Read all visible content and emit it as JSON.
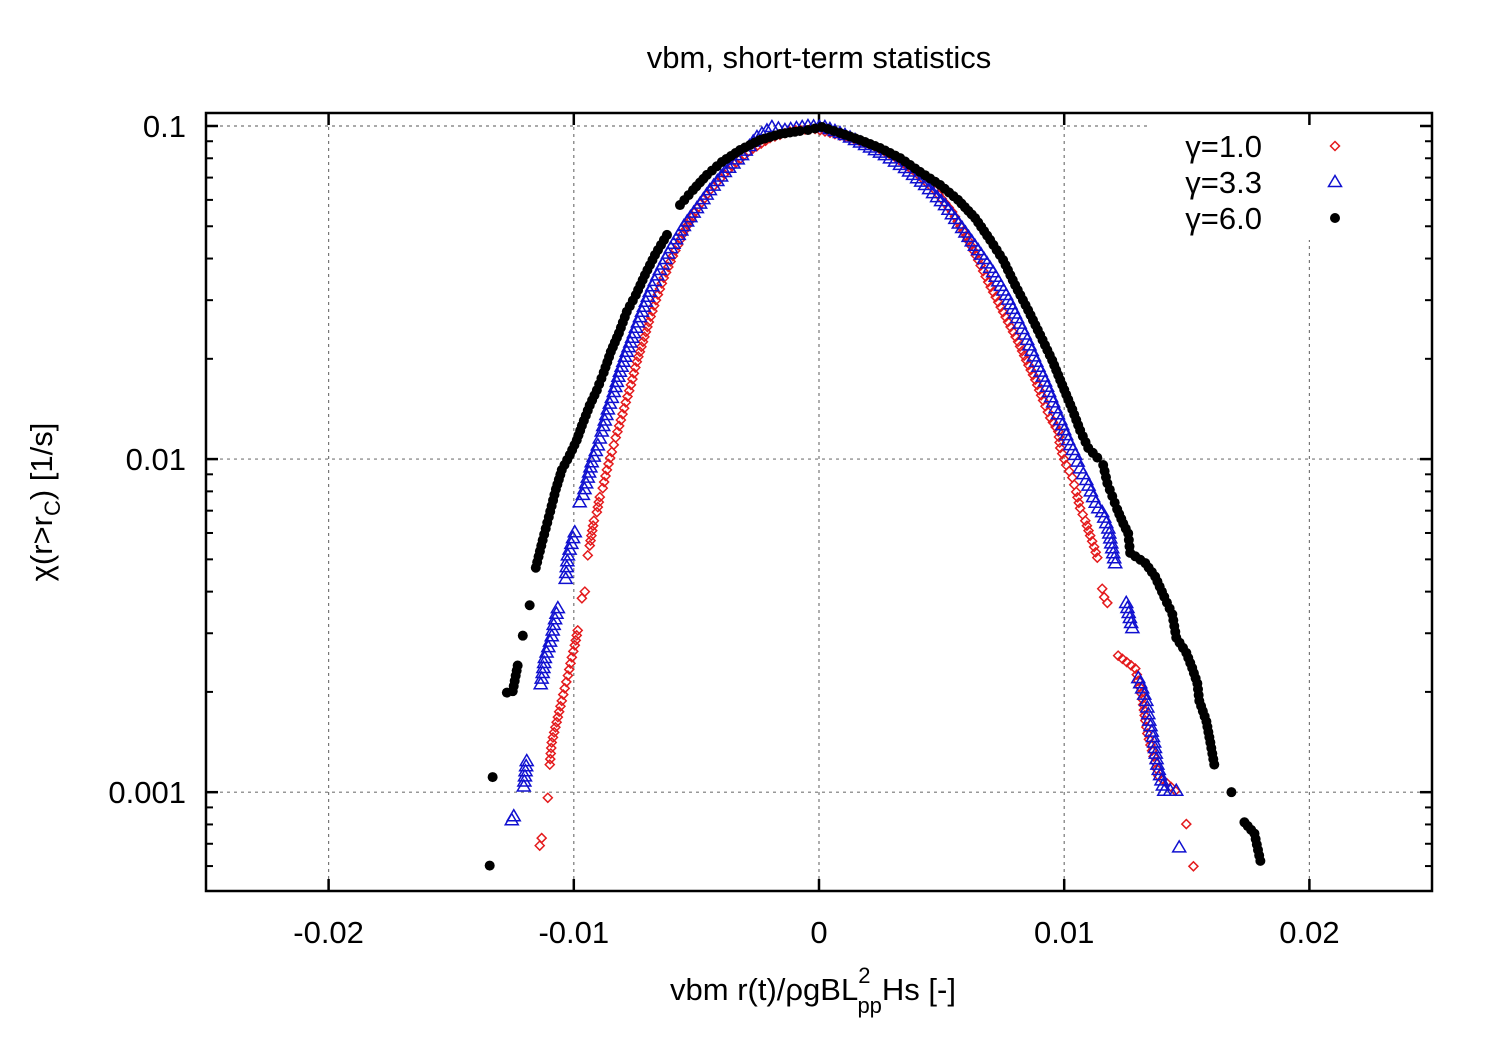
{
  "chart_data": {
    "type": "scatter",
    "title": "vbm, short-term statistics",
    "xlabel": {
      "prefix": "vbm r(t)/ρgBL",
      "sup": "2",
      "sub": "pp",
      "suffix": "Hs [-]"
    },
    "ylabel": {
      "prefix": "χ(r>r",
      "sub": "C",
      "suffix": ") [1/s]"
    },
    "xlim": [
      -0.025,
      0.025
    ],
    "ylim": [
      0.000505,
      0.1094
    ],
    "yscale": "log",
    "grid": true,
    "legend_position": "top-right",
    "x_ticks": [
      {
        "value": -0.02,
        "label": "-0.02"
      },
      {
        "value": -0.01,
        "label": "-0.01"
      },
      {
        "value": 0,
        "label": "0"
      },
      {
        "value": 0.01,
        "label": "0.01"
      },
      {
        "value": 0.02,
        "label": "0.02"
      }
    ],
    "y_ticks": [
      {
        "value": 0.1,
        "label": "0.1"
      },
      {
        "value": 0.01,
        "label": "0.01"
      },
      {
        "value": 0.001,
        "label": "0.001"
      }
    ],
    "series": [
      {
        "name": "γ=1.0",
        "marker": "diamond",
        "color": "#e41a1c",
        "points": [
          [
            -0.01139,
            0.000691
          ],
          [
            -0.01131,
            0.000728
          ],
          [
            -0.01106,
            0.000962
          ],
          [
            -0.01098,
            0.00121
          ],
          [
            -0.0109,
            0.00141
          ],
          [
            -0.01065,
            0.00168
          ],
          [
            -0.01049,
            0.00188
          ],
          [
            -0.01037,
            0.00205
          ],
          [
            -0.01024,
            0.00224
          ],
          [
            -0.01008,
            0.00254
          ],
          [
            -0.00996,
            0.00276
          ],
          [
            -0.00984,
            0.00306
          ],
          [
            -0.00967,
            0.00382
          ],
          [
            -0.00955,
            0.004
          ],
          [
            -0.00943,
            0.00514
          ],
          [
            -0.00935,
            0.0055
          ],
          [
            -0.00918,
            0.00653
          ],
          [
            -0.00906,
            0.00693
          ],
          [
            -0.00894,
            0.00769
          ],
          [
            -0.00882,
            0.00818
          ],
          [
            -0.00865,
            0.00928
          ],
          [
            -0.00845,
            0.0105
          ],
          [
            -0.00829,
            0.0116
          ],
          [
            -0.00808,
            0.0131
          ],
          [
            -0.00788,
            0.0148
          ],
          [
            -0.00767,
            0.0167
          ],
          [
            -0.00743,
            0.0196
          ],
          [
            -0.00718,
            0.0225
          ],
          [
            -0.00694,
            0.0258
          ],
          [
            -0.00665,
            0.03
          ],
          [
            -0.00633,
            0.035
          ],
          [
            -0.00596,
            0.0407
          ],
          [
            -0.00555,
            0.0474
          ],
          [
            -0.00506,
            0.0552
          ],
          [
            -0.00445,
            0.0642
          ],
          [
            -0.00371,
            0.0738
          ],
          [
            -0.0029,
            0.0836
          ],
          [
            -0.002,
            0.092
          ],
          [
            -0.00098,
            0.0973
          ],
          [
            -0.00016,
            0.098
          ],
          [
            0.00065,
            0.0946
          ],
          [
            0.00147,
            0.0908
          ],
          [
            0.00229,
            0.0865
          ],
          [
            0.0031,
            0.0807
          ],
          [
            0.00392,
            0.0728
          ],
          [
            0.00473,
            0.0642
          ],
          [
            0.00543,
            0.0552
          ],
          [
            0.006,
            0.0467
          ],
          [
            0.00649,
            0.0396
          ],
          [
            0.0069,
            0.034
          ],
          [
            0.00731,
            0.0296
          ],
          [
            0.00771,
            0.0258
          ],
          [
            0.00812,
            0.0225
          ],
          [
            0.00845,
            0.0198
          ],
          [
            0.00882,
            0.0173
          ],
          [
            0.00914,
            0.015
          ],
          [
            0.00943,
            0.0133
          ],
          [
            0.00976,
            0.0121
          ],
          [
            0.00984,
            0.0108
          ],
          [
            0.01008,
            0.0096
          ],
          [
            0.01033,
            0.0088
          ],
          [
            0.01049,
            0.00797
          ],
          [
            0.01065,
            0.00712
          ],
          [
            0.01086,
            0.00653
          ],
          [
            0.01106,
            0.00589
          ],
          [
            0.01122,
            0.00545
          ],
          [
            0.01135,
            0.00506
          ],
          [
            0.01155,
            0.00408
          ],
          [
            0.01163,
            0.00385
          ],
          [
            0.01176,
            0.0037
          ],
          [
            0.0122,
            0.00257
          ],
          [
            0.0129,
            0.00235
          ],
          [
            0.01302,
            0.00216
          ],
          [
            0.01314,
            0.00198
          ],
          [
            0.01322,
            0.00183
          ],
          [
            0.01331,
            0.00164
          ],
          [
            0.01339,
            0.0015
          ],
          [
            0.01371,
            0.00123
          ],
          [
            0.01384,
            0.00112
          ],
          [
            0.01453,
            0.00101
          ],
          [
            0.01498,
            0.000802
          ],
          [
            0.01527,
            0.000599
          ]
        ]
      },
      {
        "name": "γ=3.3",
        "marker": "triangle",
        "color": "#1010d0",
        "points": [
          [
            -0.01253,
            0.000824
          ],
          [
            -0.01245,
            0.000847
          ],
          [
            -0.01204,
            0.00104
          ],
          [
            -0.01192,
            0.00124
          ],
          [
            -0.01135,
            0.00211
          ],
          [
            -0.01127,
            0.00228
          ],
          [
            -0.01118,
            0.00253
          ],
          [
            -0.0109,
            0.00294
          ],
          [
            -0.01082,
            0.00318
          ],
          [
            -0.01065,
            0.00357
          ],
          [
            -0.01033,
            0.00437
          ],
          [
            -0.01024,
            0.00514
          ],
          [
            -0.00996,
            0.00603
          ],
          [
            -0.00976,
            0.00742
          ],
          [
            -0.00963,
            0.00781
          ],
          [
            -0.00943,
            0.0088
          ],
          [
            -0.00927,
            0.00979
          ],
          [
            -0.00902,
            0.011
          ],
          [
            -0.00886,
            0.0121
          ],
          [
            -0.00861,
            0.0141
          ],
          [
            -0.00837,
            0.0159
          ],
          [
            -0.00812,
            0.0183
          ],
          [
            -0.00784,
            0.021
          ],
          [
            -0.00755,
            0.0239
          ],
          [
            -0.00722,
            0.0277
          ],
          [
            -0.0069,
            0.0318
          ],
          [
            -0.00649,
            0.037
          ],
          [
            -0.00604,
            0.043
          ],
          [
            -0.00551,
            0.0501
          ],
          [
            -0.00498,
            0.0567
          ],
          [
            -0.00445,
            0.0642
          ],
          [
            -0.00384,
            0.0728
          ],
          [
            -0.00314,
            0.0818
          ],
          [
            -0.00253,
            0.0927
          ],
          [
            -0.00192,
            0.0993
          ],
          [
            -0.00139,
            0.0973
          ],
          [
            -0.00045,
            0.1
          ],
          [
            0.00024,
            0.0993
          ],
          [
            0.00106,
            0.094
          ],
          [
            0.00188,
            0.0877
          ],
          [
            0.00269,
            0.0818
          ],
          [
            0.00351,
            0.0748
          ],
          [
            0.00433,
            0.0665
          ],
          [
            0.00514,
            0.0579
          ],
          [
            0.00584,
            0.0494
          ],
          [
            0.00649,
            0.0424
          ],
          [
            0.0071,
            0.0364
          ],
          [
            0.00763,
            0.0311
          ],
          [
            0.00808,
            0.0265
          ],
          [
            0.00849,
            0.0228
          ],
          [
            0.00886,
            0.0196
          ],
          [
            0.00922,
            0.0171
          ],
          [
            0.00955,
            0.0148
          ],
          [
            0.00984,
            0.0131
          ],
          [
            0.01016,
            0.0114
          ],
          [
            0.01045,
            0.0103
          ],
          [
            0.01065,
            0.00938
          ],
          [
            0.0109,
            0.00866
          ],
          [
            0.01118,
            0.00769
          ],
          [
            0.01139,
            0.00712
          ],
          [
            0.01155,
            0.00693
          ],
          [
            0.0118,
            0.00619
          ],
          [
            0.01196,
            0.0054
          ],
          [
            0.01208,
            0.00487
          ],
          [
            0.01253,
            0.0037
          ],
          [
            0.01278,
            0.00311
          ],
          [
            0.01302,
            0.0022
          ],
          [
            0.01318,
            0.00205
          ],
          [
            0.01335,
            0.00188
          ],
          [
            0.01347,
            0.00164
          ],
          [
            0.01367,
            0.00141
          ],
          [
            0.0138,
            0.00121
          ],
          [
            0.01408,
            0.00101
          ],
          [
            0.01457,
            0.00101
          ],
          [
            0.01469,
            0.000683
          ]
        ]
      },
      {
        "name": "γ=6.0",
        "marker": "circle",
        "color": "#000000",
        "points": [
          [
            -0.01343,
            0.000602
          ],
          [
            -0.01331,
            0.00111
          ],
          [
            -0.01273,
            0.00199
          ],
          [
            -0.01249,
            0.00201
          ],
          [
            -0.01229,
            0.0024
          ],
          [
            -0.01208,
            0.00295
          ],
          [
            -0.0118,
            0.00364
          ],
          [
            -0.01155,
            0.00472
          ],
          [
            -0.01127,
            0.00571
          ],
          [
            -0.01102,
            0.0067
          ],
          [
            -0.01073,
            0.00812
          ],
          [
            -0.01049,
            0.00928
          ],
          [
            -0.01016,
            0.0103
          ],
          [
            -0.00988,
            0.0114
          ],
          [
            -0.00967,
            0.0126
          ],
          [
            -0.00935,
            0.0145
          ],
          [
            -0.00906,
            0.0161
          ],
          [
            -0.00878,
            0.0182
          ],
          [
            -0.00849,
            0.021
          ],
          [
            -0.00816,
            0.0239
          ],
          [
            -0.00784,
            0.0277
          ],
          [
            -0.00747,
            0.0311
          ],
          [
            -0.0071,
            0.0357
          ],
          [
            -0.00669,
            0.041
          ],
          [
            -0.0062,
            0.0471
          ],
          [
            -0.00567,
            0.0579
          ],
          [
            -0.00514,
            0.0642
          ],
          [
            -0.00457,
            0.0713
          ],
          [
            -0.00396,
            0.078
          ],
          [
            -0.00322,
            0.0847
          ],
          [
            -0.00241,
            0.0908
          ],
          [
            -0.00159,
            0.0946
          ],
          [
            -0.00078,
            0.0966
          ],
          [
            -0.00045,
            0.0973
          ],
          [
            0.00012,
            0.0993
          ],
          [
            0.00086,
            0.0953
          ],
          [
            0.00167,
            0.0908
          ],
          [
            0.00249,
            0.0859
          ],
          [
            0.00331,
            0.0801
          ],
          [
            0.00412,
            0.0728
          ],
          [
            0.00494,
            0.0665
          ],
          [
            0.00567,
            0.06
          ],
          [
            0.00637,
            0.0529
          ],
          [
            0.00698,
            0.0455
          ],
          [
            0.00751,
            0.0396
          ],
          [
            0.008,
            0.0333
          ],
          [
            0.00853,
            0.028
          ],
          [
            0.00902,
            0.0236
          ],
          [
            0.00951,
            0.0198
          ],
          [
            0.00992,
            0.0167
          ],
          [
            0.01033,
            0.0141
          ],
          [
            0.01065,
            0.0122
          ],
          [
            0.01098,
            0.0108
          ],
          [
            0.01135,
            0.0101
          ],
          [
            0.01159,
            0.0096
          ],
          [
            0.01176,
            0.00846
          ],
          [
            0.01196,
            0.00774
          ],
          [
            0.01216,
            0.00707
          ],
          [
            0.01241,
            0.0064
          ],
          [
            0.01261,
            0.00598
          ],
          [
            0.01269,
            0.00523
          ],
          [
            0.01331,
            0.00487
          ],
          [
            0.01371,
            0.00444
          ],
          [
            0.01408,
            0.00386
          ],
          [
            0.01441,
            0.00342
          ],
          [
            0.01457,
            0.00291
          ],
          [
            0.01498,
            0.00262
          ],
          [
            0.01522,
            0.00236
          ],
          [
            0.01543,
            0.00212
          ],
          [
            0.01551,
            0.00188
          ],
          [
            0.0158,
            0.00163
          ],
          [
            0.01596,
            0.00141
          ],
          [
            0.01612,
            0.00121
          ],
          [
            0.01682,
            0.001
          ],
          [
            0.01735,
            0.000812
          ],
          [
            0.01776,
            0.000751
          ],
          [
            0.018,
            0.000622
          ]
        ]
      }
    ]
  }
}
